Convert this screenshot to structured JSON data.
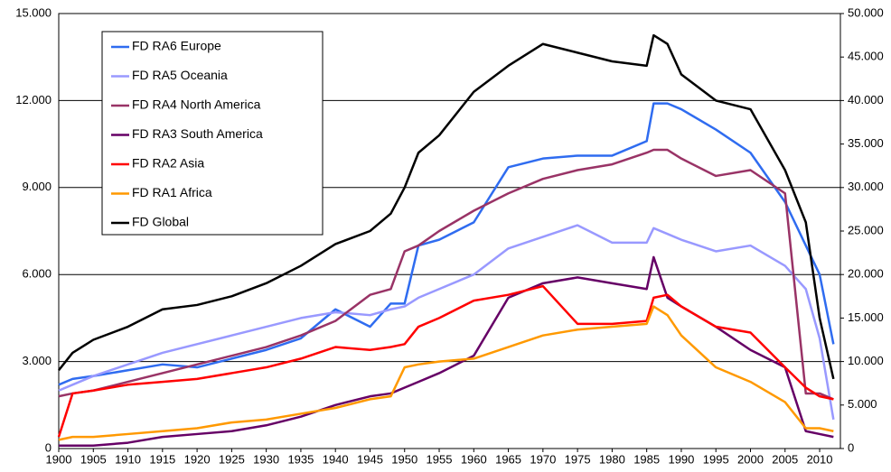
{
  "chart_data": {
    "type": "line",
    "x": [
      1900,
      1902,
      1905,
      1910,
      1915,
      1920,
      1925,
      1930,
      1935,
      1940,
      1945,
      1948,
      1950,
      1952,
      1955,
      1960,
      1965,
      1970,
      1975,
      1980,
      1985,
      1986,
      1988,
      1990,
      1995,
      2000,
      2005,
      2008,
      2010,
      2012
    ],
    "series": [
      {
        "name": "FD RA6 Europe",
        "color": "#2f6cf0",
        "values": [
          2200,
          2400,
          2500,
          2700,
          2900,
          2800,
          3100,
          3400,
          3800,
          4800,
          4200,
          5000,
          5000,
          7000,
          7200,
          7800,
          9700,
          10000,
          10100,
          10100,
          10600,
          11900,
          11900,
          11700,
          11000,
          10200,
          8500,
          7000,
          6000,
          3600
        ]
      },
      {
        "name": "FD RA5 Oceania",
        "color": "#9999ff",
        "values": [
          2000,
          2200,
          2500,
          2900,
          3300,
          3600,
          3900,
          4200,
          4500,
          4700,
          4600,
          4800,
          4900,
          5200,
          5500,
          6000,
          6900,
          7300,
          7700,
          7100,
          7100,
          7600,
          7400,
          7200,
          6800,
          7000,
          6300,
          5500,
          3800,
          1000
        ]
      },
      {
        "name": "FD RA4 North America",
        "color": "#993366",
        "values": [
          1800,
          1900,
          2000,
          2300,
          2600,
          2900,
          3200,
          3500,
          3900,
          4400,
          5300,
          5500,
          6800,
          7000,
          7500,
          8200,
          8800,
          9300,
          9600,
          9800,
          10200,
          10300,
          10300,
          10000,
          9400,
          9600,
          8800,
          1900,
          1900,
          1700
        ]
      },
      {
        "name": "FD RA3 South America",
        "color": "#660066",
        "values": [
          100,
          100,
          100,
          200,
          400,
          500,
          600,
          800,
          1100,
          1500,
          1800,
          1900,
          2100,
          2300,
          2600,
          3200,
          5200,
          5700,
          5900,
          5700,
          5500,
          6600,
          5200,
          4900,
          4200,
          3400,
          2800,
          600,
          500,
          400
        ]
      },
      {
        "name": "FD RA2 Asia",
        "color": "#ff0000",
        "values": [
          400,
          1900,
          2000,
          2200,
          2300,
          2400,
          2600,
          2800,
          3100,
          3500,
          3400,
          3500,
          3600,
          4200,
          4500,
          5100,
          5300,
          5600,
          4300,
          4300,
          4400,
          5200,
          5300,
          4900,
          4200,
          4000,
          2800,
          2100,
          1800,
          1700
        ]
      },
      {
        "name": "FD RA1 Africa",
        "color": "#ff9900",
        "values": [
          300,
          400,
          400,
          500,
          600,
          700,
          900,
          1000,
          1200,
          1400,
          1700,
          1800,
          2800,
          2900,
          3000,
          3100,
          3500,
          3900,
          4100,
          4200,
          4300,
          4900,
          4600,
          3900,
          2800,
          2300,
          1600,
          700,
          700,
          600
        ]
      },
      {
        "name": "FD Global",
        "color": "#000000",
        "axis": "y2",
        "values": [
          9000,
          11000,
          12500,
          14000,
          16000,
          16500,
          17500,
          19000,
          21000,
          23500,
          25000,
          27000,
          30000,
          34000,
          36000,
          41000,
          44000,
          46500,
          45500,
          44500,
          44000,
          47500,
          46500,
          43000,
          40000,
          39000,
          32000,
          26000,
          15000,
          8000
        ]
      }
    ],
    "xlim": [
      1900,
      2013
    ],
    "xticks": [
      1900,
      1905,
      1910,
      1915,
      1920,
      1925,
      1930,
      1935,
      1940,
      1945,
      1950,
      1955,
      1960,
      1965,
      1970,
      1975,
      1980,
      1985,
      1990,
      1995,
      2000,
      2005,
      2010
    ],
    "ylim": [
      0,
      15000
    ],
    "yticks": [
      0,
      {
        "value": 3000,
        "label": "3.000"
      },
      {
        "value": 6000,
        "label": "6.000"
      },
      {
        "value": 9000,
        "label": "9.000"
      },
      {
        "value": 12000,
        "label": "12.000"
      },
      {
        "value": 15000,
        "label": "15.000"
      }
    ],
    "y2lim": [
      0,
      50000
    ],
    "y2ticks": [
      0,
      {
        "value": 5000,
        "label": "5.000"
      },
      {
        "value": 10000,
        "label": "10.000"
      },
      {
        "value": 15000,
        "label": "15.000"
      },
      {
        "value": 20000,
        "label": "20.000"
      },
      {
        "value": 25000,
        "label": "25.000"
      },
      {
        "value": 30000,
        "label": "30.000"
      },
      {
        "value": 35000,
        "label": "35.000"
      },
      {
        "value": 40000,
        "label": "40.000"
      },
      {
        "value": 45000,
        "label": "45.000"
      },
      {
        "value": 50000,
        "label": "50.000"
      }
    ],
    "grid": true,
    "legend": "upper-left"
  }
}
